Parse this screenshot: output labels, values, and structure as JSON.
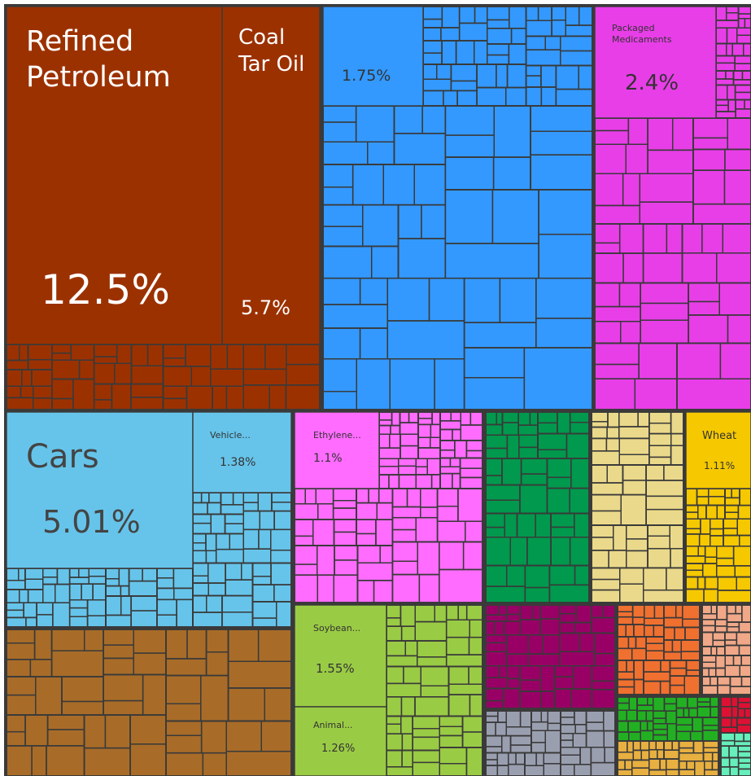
{
  "chart_data": {
    "type": "treemap",
    "categories": [
      "Refined Petroleum",
      "Coal Tar Oil",
      null,
      "Packaged Medicaments",
      "Cars",
      "Vehicle...",
      "Ethylene...",
      "Wheat",
      "Soybean...",
      "Animal..."
    ],
    "values": [
      12.5,
      5.7,
      1.75,
      2.4,
      5.01,
      1.38,
      1.1,
      1.11,
      1.55,
      1.26
    ],
    "value_labels": [
      "12.5%",
      "5.7%",
      "1.75%",
      "2.4%",
      "5.01%",
      "1.38%",
      "1.1%",
      "1.11%",
      "1.55%",
      "1.26%"
    ],
    "colors": [
      "#9c3100",
      "#9c3100",
      "#3399ff",
      "#e83ee8",
      "#66c4ea",
      "#66c4ea",
      "#ff6cff",
      "#f5c800",
      "#9acb45",
      "#9acb45"
    ]
  }
}
